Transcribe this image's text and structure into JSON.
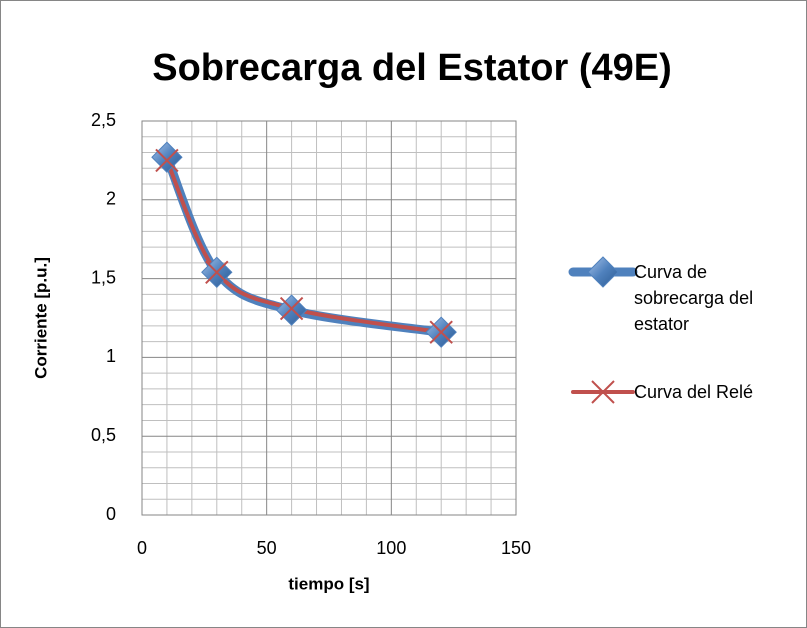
{
  "chart_data": {
    "type": "line",
    "title": "Sobrecarga del Estator (49E)",
    "x_label": "tiempo [s]",
    "y_label": "Corriente [p.u.]",
    "x": [
      10,
      30,
      60,
      120
    ],
    "series": [
      {
        "name": "Curva de sobrecarga del estator",
        "color": "#4f81bd",
        "values": [
          2.27,
          1.54,
          1.3,
          1.16
        ]
      },
      {
        "name": "Curva del Relé",
        "color": "#c0504d",
        "values": [
          2.25,
          1.54,
          1.31,
          1.16
        ]
      }
    ],
    "xlim": [
      0,
      150
    ],
    "xticks": [
      0,
      50,
      100,
      150
    ],
    "ylim": [
      0,
      2.5
    ],
    "yticks": [
      0,
      {
        "value": 0.5,
        "label": "0,5"
      },
      1,
      {
        "value": 1.5,
        "label": "1,5"
      },
      2,
      {
        "value": 2.5,
        "label": "2,5"
      }
    ],
    "grid": true,
    "minor_grid": true,
    "smooth": true,
    "legend": "right"
  }
}
